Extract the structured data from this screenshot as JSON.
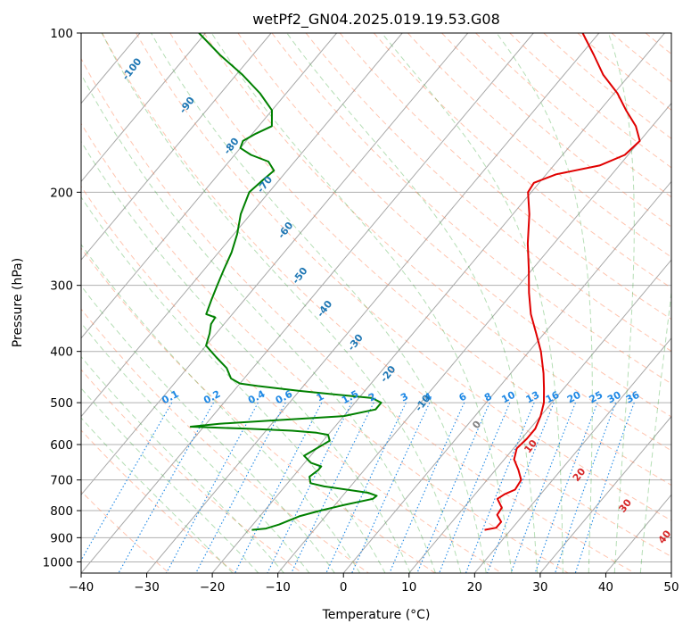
{
  "chart_data": {
    "type": "line",
    "title": "wetPf2_GN04.2025.019.19.53.G08",
    "xlabel": "Temperature (°C)",
    "ylabel": "Pressure (hPa)",
    "xlim": [
      -40,
      50
    ],
    "ylim": [
      1050,
      100
    ],
    "y_scale": "log",
    "x_ticks": [
      -40,
      -30,
      -20,
      -10,
      0,
      10,
      20,
      30,
      40,
      50
    ],
    "y_ticks": [
      100,
      200,
      300,
      400,
      500,
      600,
      700,
      800,
      900,
      1000
    ],
    "grid": true,
    "skew_t": true,
    "series": [
      {
        "color": "#e00000",
        "p": [
          870,
          862,
          840,
          815,
          790,
          760,
          745,
          730,
          700,
          670,
          640,
          610,
          585,
          560,
          530,
          500,
          470,
          440,
          400,
          370,
          340,
          310,
          280,
          250,
          220,
          200,
          192,
          185,
          178,
          170,
          160,
          150,
          140,
          130,
          120,
          110,
          100
        ],
        "t": [
          16,
          17.5,
          17.5,
          16,
          15.8,
          14,
          14.5,
          15.5,
          15.2,
          13.5,
          11.5,
          10.5,
          10.8,
          10.8,
          10,
          8.8,
          7,
          5,
          1.8,
          -1.2,
          -4.5,
          -7.5,
          -10.5,
          -14,
          -17.5,
          -20.5,
          -20.8,
          -18.5,
          -13,
          -10.5,
          -10,
          -12.5,
          -16,
          -19.5,
          -24,
          -28,
          -32.5
        ]
      },
      {
        "color": "#008000",
        "p": [
          870,
          865,
          850,
          820,
          800,
          780,
          760,
          750,
          740,
          720,
          710,
          690,
          670,
          660,
          650,
          630,
          610,
          590,
          575,
          570,
          565,
          560,
          555,
          548,
          540,
          530,
          515,
          500,
          490,
          485,
          475,
          465,
          460,
          450,
          430,
          410,
          390,
          370,
          355,
          345,
          340,
          320,
          300,
          280,
          260,
          240,
          220,
          200,
          190,
          182,
          175,
          170,
          165,
          160,
          155,
          150,
          140,
          130,
          120,
          110,
          100
        ],
        "t": [
          -19.5,
          -17.5,
          -16,
          -14,
          -11.5,
          -8.5,
          -5,
          -4.8,
          -6.5,
          -14,
          -16.5,
          -17.5,
          -17,
          -17,
          -19,
          -21,
          -20,
          -19,
          -20,
          -22,
          -26,
          -33,
          -42,
          -38,
          -30,
          -20,
          -16,
          -16,
          -18,
          -22,
          -30,
          -37,
          -40,
          -42,
          -44,
          -47,
          -50,
          -51,
          -52,
          -52.2,
          -54,
          -55,
          -56,
          -57,
          -58,
          -59.5,
          -61.5,
          -63,
          -62.5,
          -62,
          -64,
          -67.5,
          -70,
          -70.5,
          -69.5,
          -68,
          -70,
          -74,
          -79,
          -85,
          -91
        ]
      }
    ],
    "contour_labels": {
      "mixing_ratio": [
        "0.1",
        "0.2",
        "0.4",
        "0.6",
        "1",
        "1.5",
        "2",
        "3",
        "4",
        "6",
        "8",
        "10",
        "13",
        "16",
        "20",
        "25",
        "30",
        "36"
      ],
      "moist_adiabats": [
        "-100",
        "-90",
        "-80",
        "-70",
        "-60",
        "-50",
        "-40",
        "-30",
        "-20",
        "-10",
        "0",
        "10",
        "20",
        "30",
        "40"
      ]
    },
    "colors": {
      "temperature": "#e00000",
      "dewpoint": "#008000",
      "dry_adiabat": "#ff7f50",
      "moist_adiabat": "#2ca02c",
      "mixing_ratio": "#1e88e5",
      "moist_label": "#1f77b4",
      "warm_label": "#d62728"
    }
  }
}
